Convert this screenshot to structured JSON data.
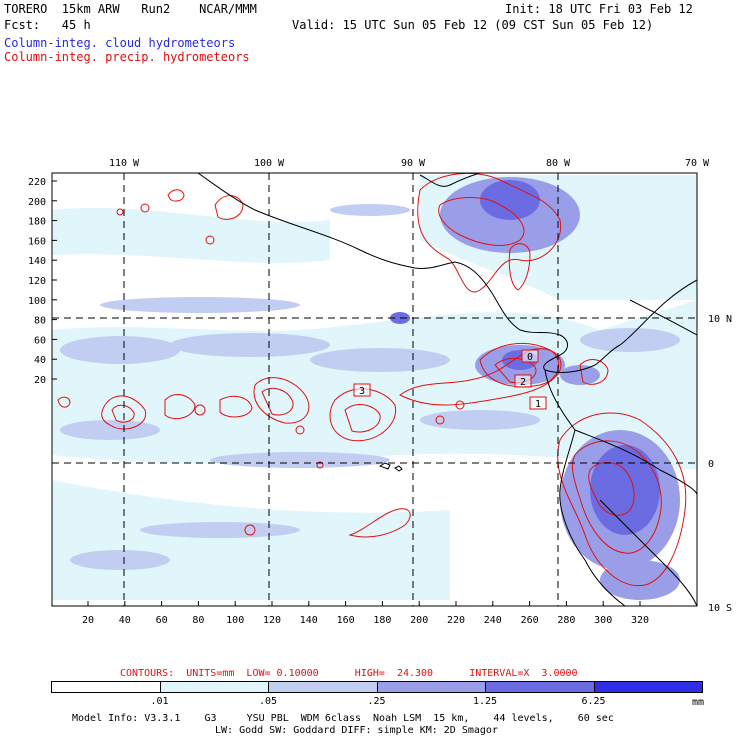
{
  "header": {
    "left_line1": "TORERO  15km ARW   Run2    NCAR/MMM",
    "left_line2": "Fcst:   45 h",
    "right_line1": "Init: 18 UTC Fri 03 Feb 12",
    "right_line2": "Valid: 15 UTC Sun 05 Feb 12 (09 CST Sun 05 Feb 12)",
    "legend_cloud": "Column-integ. cloud hydrometeors",
    "legend_precip": "Column-integ. precip. hydrometeors"
  },
  "colors": {
    "cloud": "#2a2ad6",
    "precip": "#e01010",
    "shade1": "#e0f6fb",
    "shade2": "#c2cdf2",
    "shade3": "#9a9ee9",
    "shade4": "#6c6ce2",
    "shade5": "#2e2ee6"
  },
  "map": {
    "lon_labels": [
      "110 W",
      "100 W",
      "90 W",
      "80 W",
      "70 W"
    ],
    "lat_labels": [
      "10 N",
      "0",
      "10 S"
    ],
    "y_ticks": [
      "220",
      "200",
      "180",
      "160",
      "140",
      "120",
      "100",
      "80",
      "60",
      "40",
      "20"
    ],
    "x_ticks": [
      "20",
      "40",
      "60",
      "80",
      "100",
      "120",
      "140",
      "160",
      "180",
      "200",
      "220",
      "240",
      "260",
      "280",
      "300",
      "320"
    ],
    "box_labels": [
      "3",
      "2",
      "1",
      "0"
    ]
  },
  "contours": {
    "text": "CONTOURS:  UNITS=mm  LOW= 0.10000      HIGH=  24.300      INTERVAL=X  3.0000"
  },
  "colorbar": {
    "labels": [
      ".01",
      ".05",
      ".25",
      "1.25",
      "6.25"
    ],
    "unit": "mm"
  },
  "footer": {
    "line1": "Model Info: V3.3.1    G3     YSU PBL  WDM 6class  Noah LSM  15 km,    44 levels,    60 sec",
    "line2": "LW: Godd SW: Goddard DIFF: simple KM: 2D Smagor"
  }
}
